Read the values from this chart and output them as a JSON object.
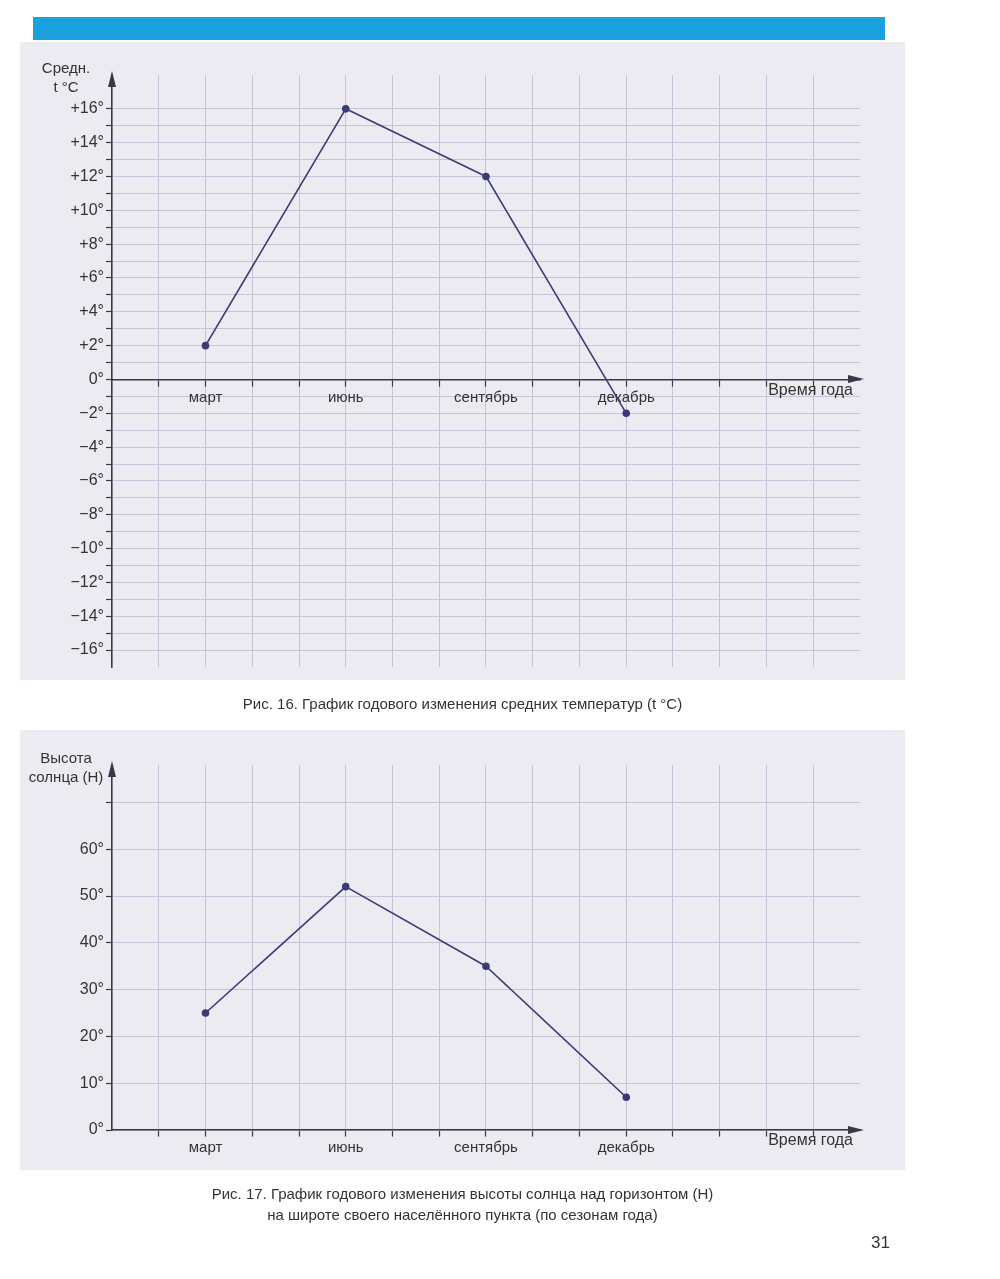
{
  "chart_data": [
    {
      "type": "line",
      "title": "Рис. 16. График годового изменения средних температур (t °C)",
      "ylabel": "Средн. t °C",
      "xlabel": "Время года",
      "categories": [
        "март",
        "июнь",
        "сентябрь",
        "декабрь"
      ],
      "series": [
        {
          "color": "#3b3b78",
          "values": [
            2,
            16,
            12,
            -2
          ]
        }
      ],
      "ylim": [
        -17,
        18
      ],
      "yticks": [
        {
          "value": -16,
          "label": "−16°"
        },
        {
          "value": -15,
          "label": null
        },
        {
          "value": -14,
          "label": "−14°"
        },
        {
          "value": -13,
          "label": null
        },
        {
          "value": -12,
          "label": "−12°"
        },
        {
          "value": -11,
          "label": null
        },
        {
          "value": -10,
          "label": "−10°"
        },
        {
          "value": -9,
          "label": null
        },
        {
          "value": -8,
          "label": "−8°"
        },
        {
          "value": -7,
          "label": null
        },
        {
          "value": -6,
          "label": "−6°"
        },
        {
          "value": -5,
          "label": null
        },
        {
          "value": -4,
          "label": "−4°"
        },
        {
          "value": -3,
          "label": null
        },
        {
          "value": -2,
          "label": "−2°"
        },
        {
          "value": -1,
          "label": null
        },
        {
          "value": 0,
          "label": "0°"
        },
        {
          "value": 1,
          "label": null
        },
        {
          "value": 2,
          "label": "+2°"
        },
        {
          "value": 3,
          "label": null
        },
        {
          "value": 4,
          "label": "+4°"
        },
        {
          "value": 5,
          "label": null
        },
        {
          "value": 6,
          "label": "+6°"
        },
        {
          "value": 7,
          "label": null
        },
        {
          "value": 8,
          "label": "+8°"
        },
        {
          "value": 9,
          "label": null
        },
        {
          "value": 10,
          "label": "+10°"
        },
        {
          "value": 11,
          "label": null
        },
        {
          "value": 12,
          "label": "+12°"
        },
        {
          "value": 13,
          "label": null
        },
        {
          "value": 14,
          "label": "+14°"
        },
        {
          "value": 15,
          "label": null
        },
        {
          "value": 16,
          "label": "+16°"
        }
      ],
      "grid": true,
      "marker": "circle",
      "line_style": "solid"
    },
    {
      "type": "line",
      "title": "Рис. 17. График годового изменения высоты солнца над горизонтом (H)\nна широте своего населённого пункта (по сезонам года)",
      "ylabel": "Высота солнца (H)",
      "xlabel": "Время года",
      "categories": [
        "март",
        "июнь",
        "сентябрь",
        "декабрь"
      ],
      "series": [
        {
          "color": "#3b3b78",
          "values": [
            25,
            52,
            35,
            7
          ]
        }
      ],
      "ylim": [
        0,
        78
      ],
      "yticks": [
        {
          "value": 0,
          "label": "0°"
        },
        {
          "value": 10,
          "label": "10°"
        },
        {
          "value": 20,
          "label": "20°"
        },
        {
          "value": 30,
          "label": "30°"
        },
        {
          "value": 40,
          "label": "40°"
        },
        {
          "value": 50,
          "label": "50°"
        },
        {
          "value": 60,
          "label": "60°"
        },
        {
          "value": 70,
          "label": null
        }
      ],
      "grid": true,
      "marker": "circle",
      "line_style": "solid",
      "annotations": [
        "31"
      ]
    }
  ]
}
